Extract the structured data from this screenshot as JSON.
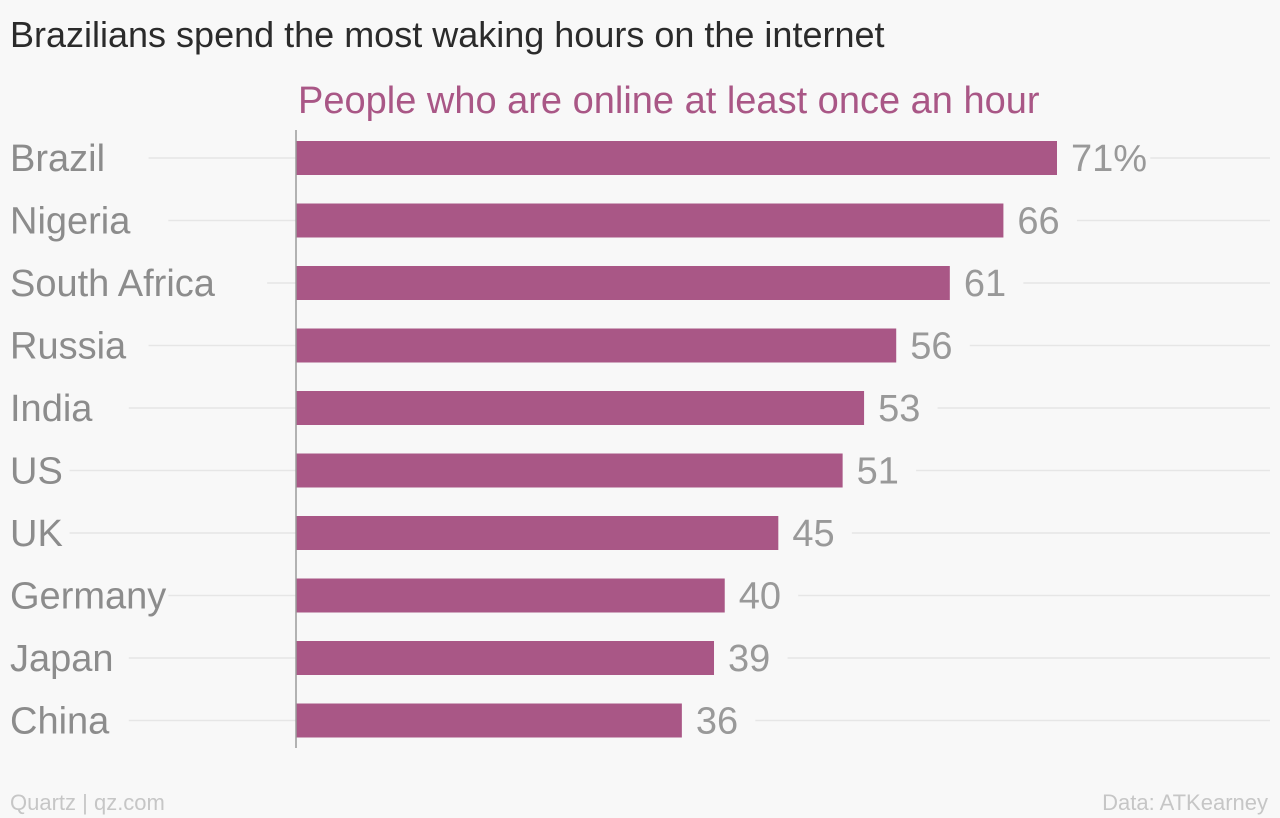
{
  "chart_data": {
    "type": "bar",
    "orientation": "horizontal",
    "title": "Brazilians spend the most waking hours on the internet",
    "series": [
      {
        "name": "People who are online at least once an hour",
        "values": [
          71,
          66,
          61,
          56,
          53,
          51,
          45,
          40,
          39,
          36
        ]
      }
    ],
    "categories": [
      "Brazil",
      "Nigeria",
      "South Africa",
      "Russia",
      "India",
      "US",
      "UK",
      "Germany",
      "Japan",
      "China"
    ],
    "data_labels": [
      "71%",
      "66",
      "61",
      "56",
      "53",
      "51",
      "45",
      "40",
      "39",
      "36"
    ],
    "value_unit": "%",
    "xlim": [
      0,
      71
    ],
    "grid": true,
    "colors": {
      "bar": "#a95786",
      "series_label": "#a95786",
      "category_label": "#8c8c8c",
      "value_label": "#999999",
      "gridline": "#e6e6e6",
      "axis": "#9a9a9a"
    }
  },
  "footer": {
    "credit": "Quartz | qz.com",
    "source": "Data: ATKearney"
  }
}
